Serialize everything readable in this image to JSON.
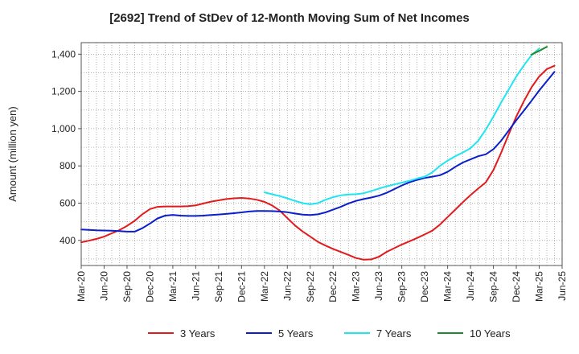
{
  "chart_data": {
    "type": "line",
    "title": "[2692]  Trend of StDev of 12-Month Moving Sum of Net Incomes",
    "xlabel": "",
    "ylabel": "Amount (million yen)",
    "x_ticks": [
      "Mar-20",
      "Jun-20",
      "Sep-20",
      "Dec-20",
      "Mar-21",
      "Jun-21",
      "Sep-21",
      "Dec-21",
      "Mar-22",
      "Jun-22",
      "Sep-22",
      "Dec-22",
      "Mar-23",
      "Jun-23",
      "Sep-23",
      "Dec-23",
      "Mar-24",
      "Jun-24",
      "Sep-24",
      "Dec-24",
      "Mar-25",
      "Jun-25"
    ],
    "y_ticks": [
      400,
      600,
      800,
      1000,
      1200,
      1400
    ],
    "y_tick_labels": [
      "400",
      "600",
      "800",
      "1,000",
      "1,200",
      "1,400"
    ],
    "ylim": [
      265,
      1462
    ],
    "grid": true,
    "legend_position": "bottom",
    "series": [
      {
        "name": "3 Years",
        "color": "#e31a1c",
        "start": "Mar-20",
        "values": [
          390,
          398,
          408,
          420,
          438,
          455,
          478,
          505,
          540,
          568,
          580,
          582,
          582,
          582,
          584,
          588,
          598,
          608,
          615,
          622,
          626,
          628,
          625,
          618,
          607,
          588,
          560,
          520,
          480,
          448,
          420,
          392,
          372,
          354,
          338,
          322,
          305,
          296,
          298,
          312,
          338,
          358,
          378,
          395,
          413,
          432,
          452,
          485,
          525,
          565,
          605,
          643,
          678,
          712,
          778,
          870,
          970,
          1065,
          1148,
          1222,
          1280,
          1320,
          1338
        ]
      },
      {
        "name": "5 Years",
        "color": "#0a1ecc",
        "start": "Mar-20",
        "values": [
          458,
          456,
          454,
          453,
          452,
          450,
          447,
          447,
          465,
          490,
          518,
          533,
          537,
          533,
          531,
          531,
          533,
          536,
          539,
          542,
          546,
          550,
          555,
          558,
          558,
          557,
          555,
          551,
          544,
          538,
          536,
          540,
          550,
          565,
          580,
          598,
          612,
          622,
          630,
          640,
          655,
          675,
          695,
          712,
          725,
          735,
          742,
          750,
          768,
          795,
          818,
          835,
          852,
          862,
          890,
          935,
          990,
          1045,
          1097,
          1150,
          1205,
          1255,
          1305
        ]
      },
      {
        "name": "7 Years",
        "color": "#1ee6f0",
        "start": "Mar-22",
        "values": [
          658,
          648,
          638,
          626,
          612,
          600,
          594,
          600,
          618,
          632,
          642,
          646,
          648,
          653,
          665,
          678,
          690,
          700,
          710,
          720,
          732,
          742,
          765,
          800,
          828,
          852,
          872,
          895,
          935,
          995,
          1065,
          1140,
          1210,
          1280,
          1340,
          1395,
          1430
        ]
      },
      {
        "name": "10 Years",
        "color": "#1f8a2a",
        "start": "Feb-25",
        "values": [
          1398,
          1418,
          1440
        ]
      }
    ]
  }
}
